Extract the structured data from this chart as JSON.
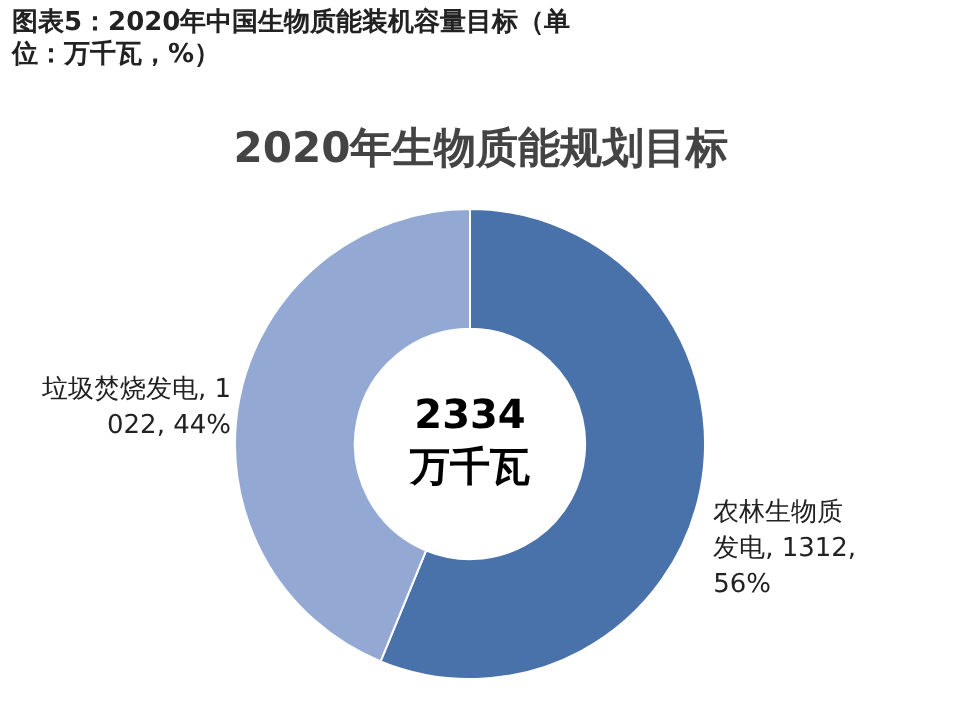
{
  "chart_data": {
    "type": "donut",
    "title": "图表5：2020年中国生物质能装机容量目标（单位：万千瓦，%）",
    "subtitle": "2020年生物质能规划目标",
    "categories": [
      "农林生物质发电",
      "垃圾焚烧发电"
    ],
    "values": [
      1312,
      1022
    ],
    "colors": [
      "#4a72aa",
      "#93a9d3"
    ],
    "value_labels": [
      "1312, 56%",
      "1022, 44%"
    ],
    "annotations": [
      "2334 万千瓦"
    ],
    "legend": false
  }
}
